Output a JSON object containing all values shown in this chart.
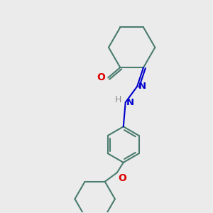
{
  "background_color": "#ebebeb",
  "bond_color": "#4a7c6f",
  "nitrogen_color": "#0000cc",
  "oxygen_color": "#dd0000",
  "hydrogen_color": "#888888",
  "line_width": 1.5,
  "figsize": [
    3.0,
    3.0
  ],
  "dpi": 100,
  "xlim": [
    0,
    10
  ],
  "ylim": [
    0,
    10
  ]
}
